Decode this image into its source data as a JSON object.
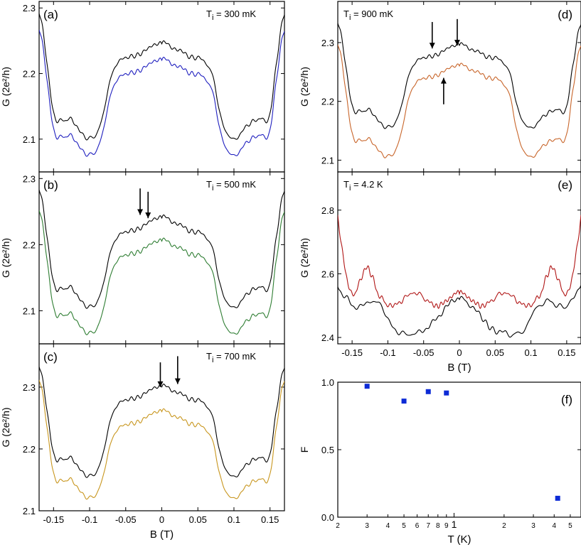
{
  "chart_data": [
    {
      "panel": "a",
      "type": "line",
      "label": "(a)",
      "temp_label": "= 300 mK",
      "temp_prefix": "T",
      "temp_sub": "i",
      "ylabel": "G (2e²/h)",
      "xlabel": "",
      "xlim": [
        -0.17,
        0.17
      ],
      "ylim": [
        2.05,
        2.31
      ],
      "yticks": [
        2.1,
        2.2,
        2.3
      ],
      "ytick_labels": [
        "2.1",
        "2.2",
        "2.3"
      ],
      "xticks": [
        -0.15,
        -0.1,
        -0.05,
        0,
        0.05,
        0.1,
        0.15
      ],
      "xtick_labels": [],
      "series": [
        {
          "name": "black",
          "color": "#000000",
          "base": 2.24,
          "edge": 2.31,
          "minimum": 2.095
        },
        {
          "name": "blue",
          "color": "#1f1fbf",
          "base": 2.215,
          "edge": 2.285,
          "minimum": 2.07
        }
      ],
      "arrows": []
    },
    {
      "panel": "b",
      "type": "line",
      "label": "(b)",
      "temp_label": "= 500 mK",
      "temp_prefix": "T",
      "temp_sub": "i",
      "ylabel": "G (2e²/h)",
      "xlabel": "",
      "xlim": [
        -0.17,
        0.17
      ],
      "ylim": [
        2.05,
        2.31
      ],
      "yticks": [
        2.1,
        2.2,
        2.3
      ],
      "ytick_labels": [
        "2.1",
        "2.2",
        "2.3"
      ],
      "xticks": [
        -0.15,
        -0.1,
        -0.05,
        0,
        0.05,
        0.1,
        0.15
      ],
      "xtick_labels": [],
      "series": [
        {
          "name": "black",
          "color": "#000000",
          "base": 2.235,
          "edge": 2.3,
          "minimum": 2.1
        },
        {
          "name": "green",
          "color": "#2e7d32",
          "base": 2.2,
          "edge": 2.27,
          "minimum": 2.06
        }
      ],
      "arrows": [
        {
          "x": -0.03,
          "direction": "down",
          "y_from": 2.285,
          "y_to": 2.245
        },
        {
          "x": -0.019,
          "direction": "down",
          "y_from": 2.28,
          "y_to": 2.24
        }
      ]
    },
    {
      "panel": "c",
      "type": "line",
      "label": "(c)",
      "temp_label": "= 700 mK",
      "temp_prefix": "T",
      "temp_sub": "i",
      "ylabel": "G (2e²/h)",
      "xlabel": "B (T)",
      "xlim": [
        -0.17,
        0.17
      ],
      "ylim": [
        2.1,
        2.37
      ],
      "yticks": [
        2.1,
        2.2,
        2.3
      ],
      "ytick_labels": [
        "2.1",
        "2.2",
        "2.3"
      ],
      "xticks": [
        -0.15,
        -0.1,
        -0.05,
        0,
        0.05,
        0.1,
        0.15
      ],
      "xtick_labels": [
        "-0.15",
        "-0.1",
        "-0.05",
        "0",
        "0.05",
        "0.1",
        "0.15"
      ],
      "series": [
        {
          "name": "black",
          "color": "#000000",
          "base": 2.295,
          "edge": 2.35,
          "minimum": 2.15
        },
        {
          "name": "gold",
          "color": "#c8961e",
          "base": 2.255,
          "edge": 2.33,
          "minimum": 2.115
        }
      ],
      "arrows": [
        {
          "x": -0.002,
          "direction": "down",
          "y_from": 2.34,
          "y_to": 2.3
        },
        {
          "x": 0.022,
          "direction": "down",
          "y_from": 2.35,
          "y_to": 2.305
        }
      ]
    },
    {
      "panel": "d",
      "type": "line",
      "label": "(d)",
      "temp_label": "= 900 mK",
      "temp_prefix": "T",
      "temp_sub": "i",
      "ylabel": "G (2e²/h)",
      "xlabel": "",
      "xlim": [
        -0.17,
        0.17
      ],
      "ylim": [
        2.08,
        2.37
      ],
      "yticks": [
        2.1,
        2.2,
        2.3
      ],
      "ytick_labels": [
        "2.1",
        "2.2",
        "2.3"
      ],
      "xticks": [
        -0.15,
        -0.1,
        -0.05,
        0,
        0.05,
        0.1,
        0.15
      ],
      "xtick_labels": [],
      "series": [
        {
          "name": "black",
          "color": "#000000",
          "base": 2.29,
          "edge": 2.35,
          "minimum": 2.15
        },
        {
          "name": "orange",
          "color": "#c8652a",
          "base": 2.255,
          "edge": 2.315,
          "minimum": 2.1
        }
      ],
      "arrows": [
        {
          "x": -0.038,
          "direction": "down",
          "y_from": 2.335,
          "y_to": 2.29
        },
        {
          "x": -0.003,
          "direction": "down",
          "y_from": 2.34,
          "y_to": 2.295
        },
        {
          "x": -0.022,
          "direction": "up",
          "y_from": 2.195,
          "y_to": 2.24
        }
      ]
    },
    {
      "panel": "e",
      "type": "line",
      "label": "(e)",
      "temp_label": "= 4.2 K",
      "temp_prefix": "T",
      "temp_sub": "i",
      "ylabel": "G (2e²/h)",
      "xlabel": "B (T)",
      "xlim": [
        -0.17,
        0.17
      ],
      "ylim": [
        2.38,
        2.92
      ],
      "yticks": [
        2.4,
        2.6,
        2.8
      ],
      "ytick_labels": [
        "2.4",
        "2.6",
        "2.8"
      ],
      "xticks": [
        -0.15,
        -0.1,
        -0.05,
        0,
        0.05,
        0.1,
        0.15
      ],
      "xtick_labels": [
        "-0.15",
        "-0.1",
        "-0.05",
        "0",
        "0.05",
        "0.1",
        "0.15"
      ],
      "series": [
        {
          "name": "red",
          "color": "#b01515",
          "shape": "red42"
        },
        {
          "name": "black",
          "color": "#000000",
          "shape": "black42"
        }
      ],
      "arrows": []
    },
    {
      "panel": "f",
      "type": "scatter",
      "label": "(f)",
      "ylabel": "F",
      "xlabel": "T (K)",
      "xscale": "log",
      "xlim": [
        0.2,
        5.8
      ],
      "ylim": [
        0,
        1
      ],
      "yticks": [
        0,
        0.5,
        1
      ],
      "ytick_labels": [
        "0.0",
        "0.5",
        "1.0"
      ],
      "xticks": [
        0.2,
        0.3,
        0.4,
        0.5,
        0.6,
        0.7,
        0.8,
        0.9,
        1,
        2,
        3,
        4,
        5
      ],
      "xtick_labels": [
        "2",
        "3",
        "4",
        "5",
        "6",
        "7",
        "8",
        "9",
        "1",
        "2",
        "3",
        "4",
        "5"
      ],
      "points": [
        {
          "x": 0.3,
          "y": 0.97
        },
        {
          "x": 0.5,
          "y": 0.86
        },
        {
          "x": 0.7,
          "y": 0.93
        },
        {
          "x": 0.9,
          "y": 0.92
        },
        {
          "x": 4.2,
          "y": 0.14
        }
      ],
      "marker_color": "#0d2bd6"
    }
  ]
}
